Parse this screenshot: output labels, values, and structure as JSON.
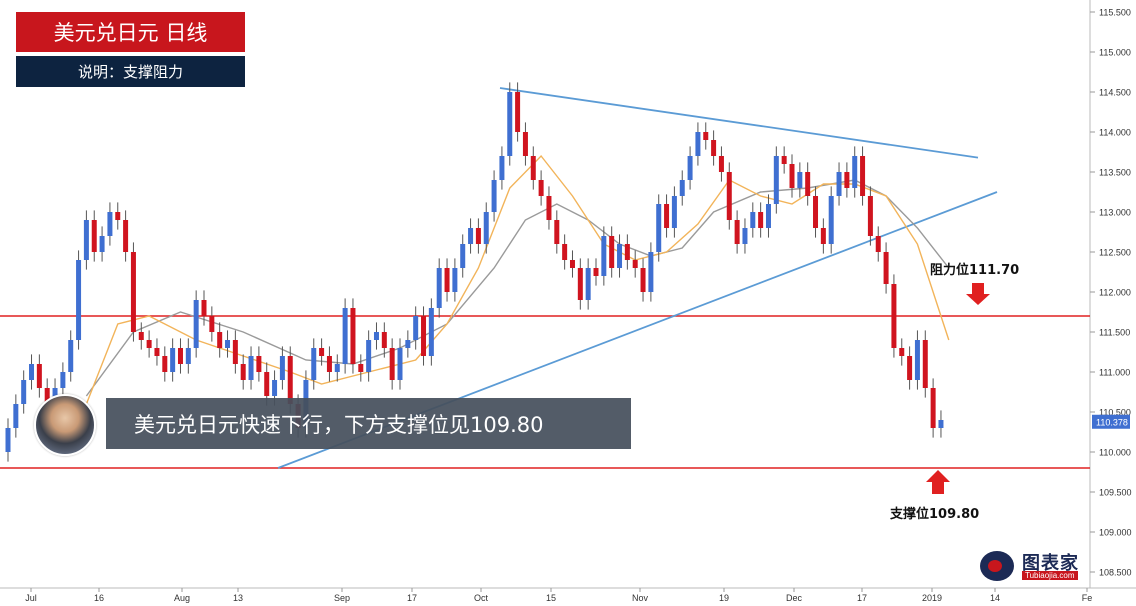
{
  "header": {
    "title": "美元兑日元 日线",
    "subtitle": "说明：支撑阻力"
  },
  "caption": {
    "text": "美元兑日元快速下行，下方支撑位见109.80"
  },
  "annotations": {
    "resistance_label": "阻力位111.70",
    "support_label": "支撑位109.80"
  },
  "logo": {
    "main": "图表家",
    "sub": "Tubiaojia.com"
  },
  "colors": {
    "up": "#3f6fd1",
    "down": "#d0141f",
    "level_line": "#e02020",
    "trend_line": "#5b9bd5",
    "ma_fast": "#f2b45a",
    "ma_slow": "#9a9a9a",
    "arrow": "#e02020"
  },
  "chart_data": {
    "type": "candlestick",
    "ylim": [
      108.3,
      115.65
    ],
    "y_ticks": [
      "108.500",
      "109.000",
      "109.500",
      "110.000",
      "110.500",
      "111.000",
      "111.500",
      "112.000",
      "112.500",
      "113.000",
      "113.500",
      "114.000",
      "114.500",
      "115.000",
      "115.500"
    ],
    "x_ticks": [
      "Jul",
      "16",
      "Aug",
      "13",
      "Sep",
      "17",
      "Oct",
      "15",
      "Nov",
      "19",
      "Dec",
      "17",
      "2019",
      "14",
      "Fe"
    ],
    "last_price": "110.378",
    "candles": [
      [
        110.0,
        110.3
      ],
      [
        110.3,
        110.6
      ],
      [
        110.6,
        110.9
      ],
      [
        110.9,
        111.1
      ],
      [
        111.1,
        110.8
      ],
      [
        110.8,
        110.5
      ],
      [
        110.5,
        110.8
      ],
      [
        110.8,
        111.0
      ],
      [
        111.0,
        111.4
      ],
      [
        111.4,
        112.4
      ],
      [
        112.4,
        112.9
      ],
      [
        112.9,
        112.5
      ],
      [
        112.5,
        112.7
      ],
      [
        112.7,
        113.0
      ],
      [
        113.0,
        112.9
      ],
      [
        112.9,
        112.5
      ],
      [
        112.5,
        111.5
      ],
      [
        111.5,
        111.4
      ],
      [
        111.4,
        111.3
      ],
      [
        111.3,
        111.2
      ],
      [
        111.2,
        111.0
      ],
      [
        111.0,
        111.3
      ],
      [
        111.3,
        111.1
      ],
      [
        111.1,
        111.3
      ],
      [
        111.3,
        111.9
      ],
      [
        111.9,
        111.7
      ],
      [
        111.7,
        111.5
      ],
      [
        111.5,
        111.3
      ],
      [
        111.3,
        111.4
      ],
      [
        111.4,
        111.1
      ],
      [
        111.1,
        110.9
      ],
      [
        110.9,
        111.2
      ],
      [
        111.2,
        111.0
      ],
      [
        111.0,
        110.7
      ],
      [
        110.7,
        110.9
      ],
      [
        110.9,
        111.2
      ],
      [
        111.2,
        110.6
      ],
      [
        110.6,
        110.3
      ],
      [
        110.3,
        110.9
      ],
      [
        110.9,
        111.3
      ],
      [
        111.3,
        111.2
      ],
      [
        111.2,
        111.0
      ],
      [
        111.0,
        111.1
      ],
      [
        111.1,
        111.8
      ],
      [
        111.8,
        111.1
      ],
      [
        111.1,
        111.0
      ],
      [
        111.0,
        111.4
      ],
      [
        111.4,
        111.5
      ],
      [
        111.5,
        111.3
      ],
      [
        111.3,
        110.9
      ],
      [
        110.9,
        111.3
      ],
      [
        111.3,
        111.4
      ],
      [
        111.4,
        111.7
      ],
      [
        111.7,
        111.2
      ],
      [
        111.2,
        111.8
      ],
      [
        111.8,
        112.3
      ],
      [
        112.3,
        112.0
      ],
      [
        112.0,
        112.3
      ],
      [
        112.3,
        112.6
      ],
      [
        112.6,
        112.8
      ],
      [
        112.8,
        112.6
      ],
      [
        112.6,
        113.0
      ],
      [
        113.0,
        113.4
      ],
      [
        113.4,
        113.7
      ],
      [
        113.7,
        114.5
      ],
      [
        114.5,
        114.0
      ],
      [
        114.0,
        113.7
      ],
      [
        113.7,
        113.4
      ],
      [
        113.4,
        113.2
      ],
      [
        113.2,
        112.9
      ],
      [
        112.9,
        112.6
      ],
      [
        112.6,
        112.4
      ],
      [
        112.4,
        112.3
      ],
      [
        112.3,
        111.9
      ],
      [
        111.9,
        112.3
      ],
      [
        112.3,
        112.2
      ],
      [
        112.2,
        112.7
      ],
      [
        112.7,
        112.3
      ],
      [
        112.3,
        112.6
      ],
      [
        112.6,
        112.4
      ],
      [
        112.4,
        112.3
      ],
      [
        112.3,
        112.0
      ],
      [
        112.0,
        112.5
      ],
      [
        112.5,
        113.1
      ],
      [
        113.1,
        112.8
      ],
      [
        112.8,
        113.2
      ],
      [
        113.2,
        113.4
      ],
      [
        113.4,
        113.7
      ],
      [
        113.7,
        114.0
      ],
      [
        114.0,
        113.9
      ],
      [
        113.9,
        113.7
      ],
      [
        113.7,
        113.5
      ],
      [
        113.5,
        112.9
      ],
      [
        112.9,
        112.6
      ],
      [
        112.6,
        112.8
      ],
      [
        112.8,
        113.0
      ],
      [
        113.0,
        112.8
      ],
      [
        112.8,
        113.1
      ],
      [
        113.1,
        113.7
      ],
      [
        113.7,
        113.6
      ],
      [
        113.6,
        113.3
      ],
      [
        113.3,
        113.5
      ],
      [
        113.5,
        113.2
      ],
      [
        113.2,
        112.8
      ],
      [
        112.8,
        112.6
      ],
      [
        112.6,
        113.2
      ],
      [
        113.2,
        113.5
      ],
      [
        113.5,
        113.3
      ],
      [
        113.3,
        113.7
      ],
      [
        113.7,
        113.2
      ],
      [
        113.2,
        112.7
      ],
      [
        112.7,
        112.5
      ],
      [
        112.5,
        112.1
      ],
      [
        112.1,
        111.3
      ],
      [
        111.3,
        111.2
      ],
      [
        111.2,
        110.9
      ],
      [
        110.9,
        111.4
      ],
      [
        111.4,
        110.8
      ],
      [
        110.8,
        110.3
      ],
      [
        110.3,
        110.4
      ]
    ],
    "ma_fast": [
      [
        10,
        110.6
      ],
      [
        14,
        111.6
      ],
      [
        18,
        111.7
      ],
      [
        24,
        111.4
      ],
      [
        30,
        111.2
      ],
      [
        36,
        111.0
      ],
      [
        40,
        110.85
      ],
      [
        46,
        111.0
      ],
      [
        52,
        111.15
      ],
      [
        56,
        111.6
      ],
      [
        60,
        112.3
      ],
      [
        64,
        113.3
      ],
      [
        68,
        113.7
      ],
      [
        72,
        113.2
      ],
      [
        76,
        112.6
      ],
      [
        80,
        112.4
      ],
      [
        84,
        112.5
      ],
      [
        88,
        112.85
      ],
      [
        92,
        113.4
      ],
      [
        96,
        113.2
      ],
      [
        100,
        113.1
      ],
      [
        104,
        113.35
      ],
      [
        108,
        113.35
      ],
      [
        112,
        113.2
      ],
      [
        116,
        112.6
      ],
      [
        120,
        111.4
      ]
    ],
    "ma_slow": [
      [
        10,
        110.7
      ],
      [
        16,
        111.5
      ],
      [
        22,
        111.75
      ],
      [
        30,
        111.5
      ],
      [
        38,
        111.15
      ],
      [
        44,
        111.1
      ],
      [
        50,
        111.3
      ],
      [
        56,
        111.6
      ],
      [
        62,
        112.3
      ],
      [
        66,
        112.9
      ],
      [
        70,
        113.1
      ],
      [
        74,
        112.9
      ],
      [
        78,
        112.6
      ],
      [
        82,
        112.45
      ],
      [
        86,
        112.55
      ],
      [
        90,
        113.0
      ],
      [
        96,
        113.25
      ],
      [
        102,
        113.3
      ],
      [
        108,
        113.4
      ],
      [
        112,
        113.2
      ],
      [
        116,
        112.8
      ],
      [
        120,
        112.3
      ]
    ]
  }
}
